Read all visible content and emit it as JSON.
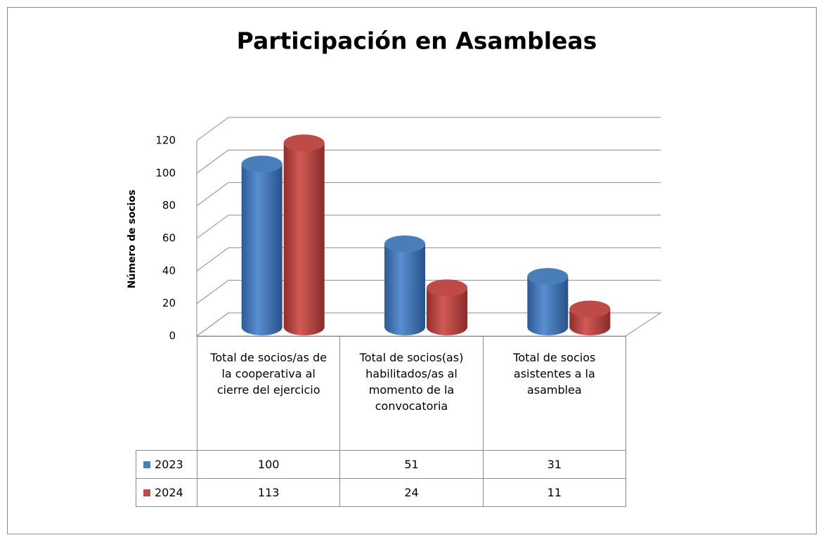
{
  "chart_data": {
    "type": "bar",
    "title": "Participación en Asambleas",
    "y_label": "Número de socios",
    "categories": [
      "Total de socios/as de la cooperativa al cierre del ejercicio",
      "Total de socios(as) habilitados/as al momento de la convocatoria",
      "Total de socios asistentes a la asamblea"
    ],
    "series": [
      {
        "name": "2023",
        "color": "#4a7ebb",
        "values": [
          100,
          51,
          31
        ]
      },
      {
        "name": "2024",
        "color": "#be4b48",
        "values": [
          113,
          24,
          11
        ]
      }
    ],
    "ylim": [
      0,
      120
    ],
    "yticks": [
      0,
      20,
      40,
      60,
      80,
      100,
      120
    ],
    "grid": true
  }
}
